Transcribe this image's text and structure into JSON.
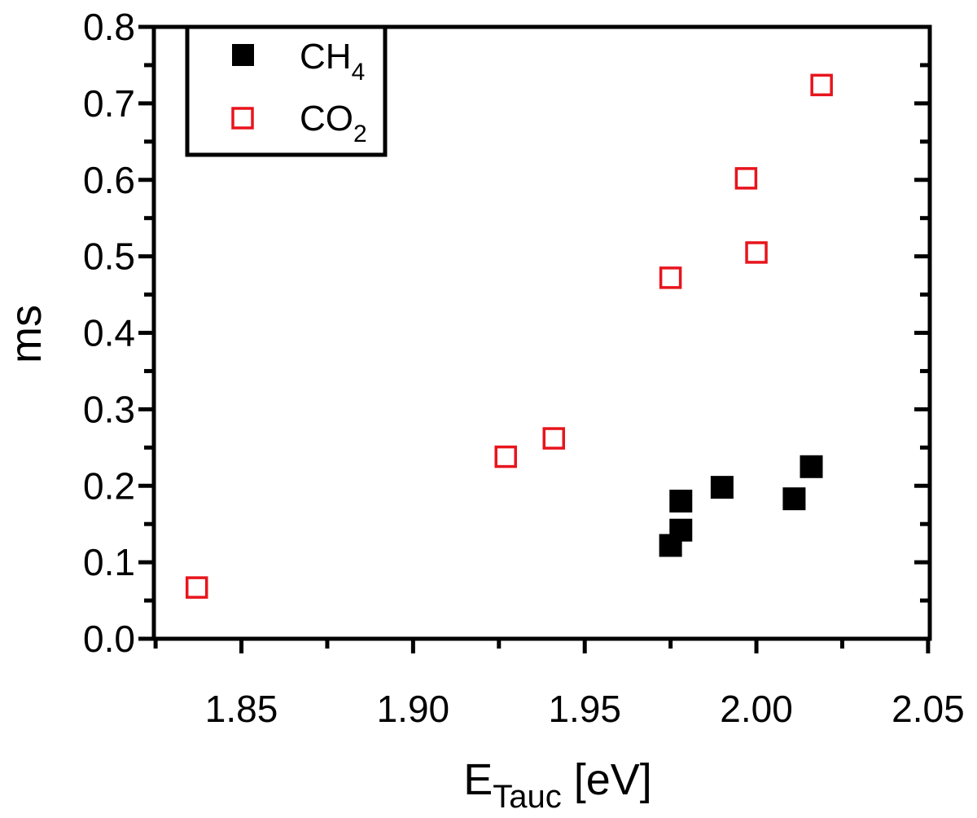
{
  "chart_data": {
    "type": "scatter",
    "title": "",
    "xlabel": {
      "main": "E",
      "sub": "Tauc",
      "suffix": " [eV]"
    },
    "ylabel": "ms",
    "xlim": [
      1.8245,
      2.0505
    ],
    "ylim": [
      0.0,
      0.8
    ],
    "xticks": [
      1.85,
      1.9,
      1.95,
      2.0,
      2.05
    ],
    "xtick_labels": [
      "1.85",
      "1.90",
      "1.95",
      "2.00",
      "2.05"
    ],
    "yticks": [
      0.0,
      0.1,
      0.2,
      0.3,
      0.4,
      0.5,
      0.6,
      0.7,
      0.8
    ],
    "ytick_labels": [
      "0.0",
      "0.1",
      "0.2",
      "0.3",
      "0.4",
      "0.5",
      "0.6",
      "0.7",
      "0.8"
    ],
    "grid": false,
    "legend_position": "top-left",
    "series": [
      {
        "name": {
          "main": "CH",
          "sub": "4"
        },
        "marker": "filled-square",
        "color": "#000000",
        "x": [
          1.975,
          1.978,
          1.978,
          1.99,
          2.011,
          2.016
        ],
        "y": [
          0.122,
          0.142,
          0.18,
          0.198,
          0.183,
          0.225
        ]
      },
      {
        "name": {
          "main": "CO",
          "sub": "2"
        },
        "marker": "open-square",
        "color": "#e8141c",
        "x": [
          1.837,
          1.927,
          1.941,
          1.975,
          1.997,
          2.0,
          2.019
        ],
        "y": [
          0.067,
          0.238,
          0.262,
          0.472,
          0.602,
          0.505,
          0.724
        ]
      }
    ]
  }
}
